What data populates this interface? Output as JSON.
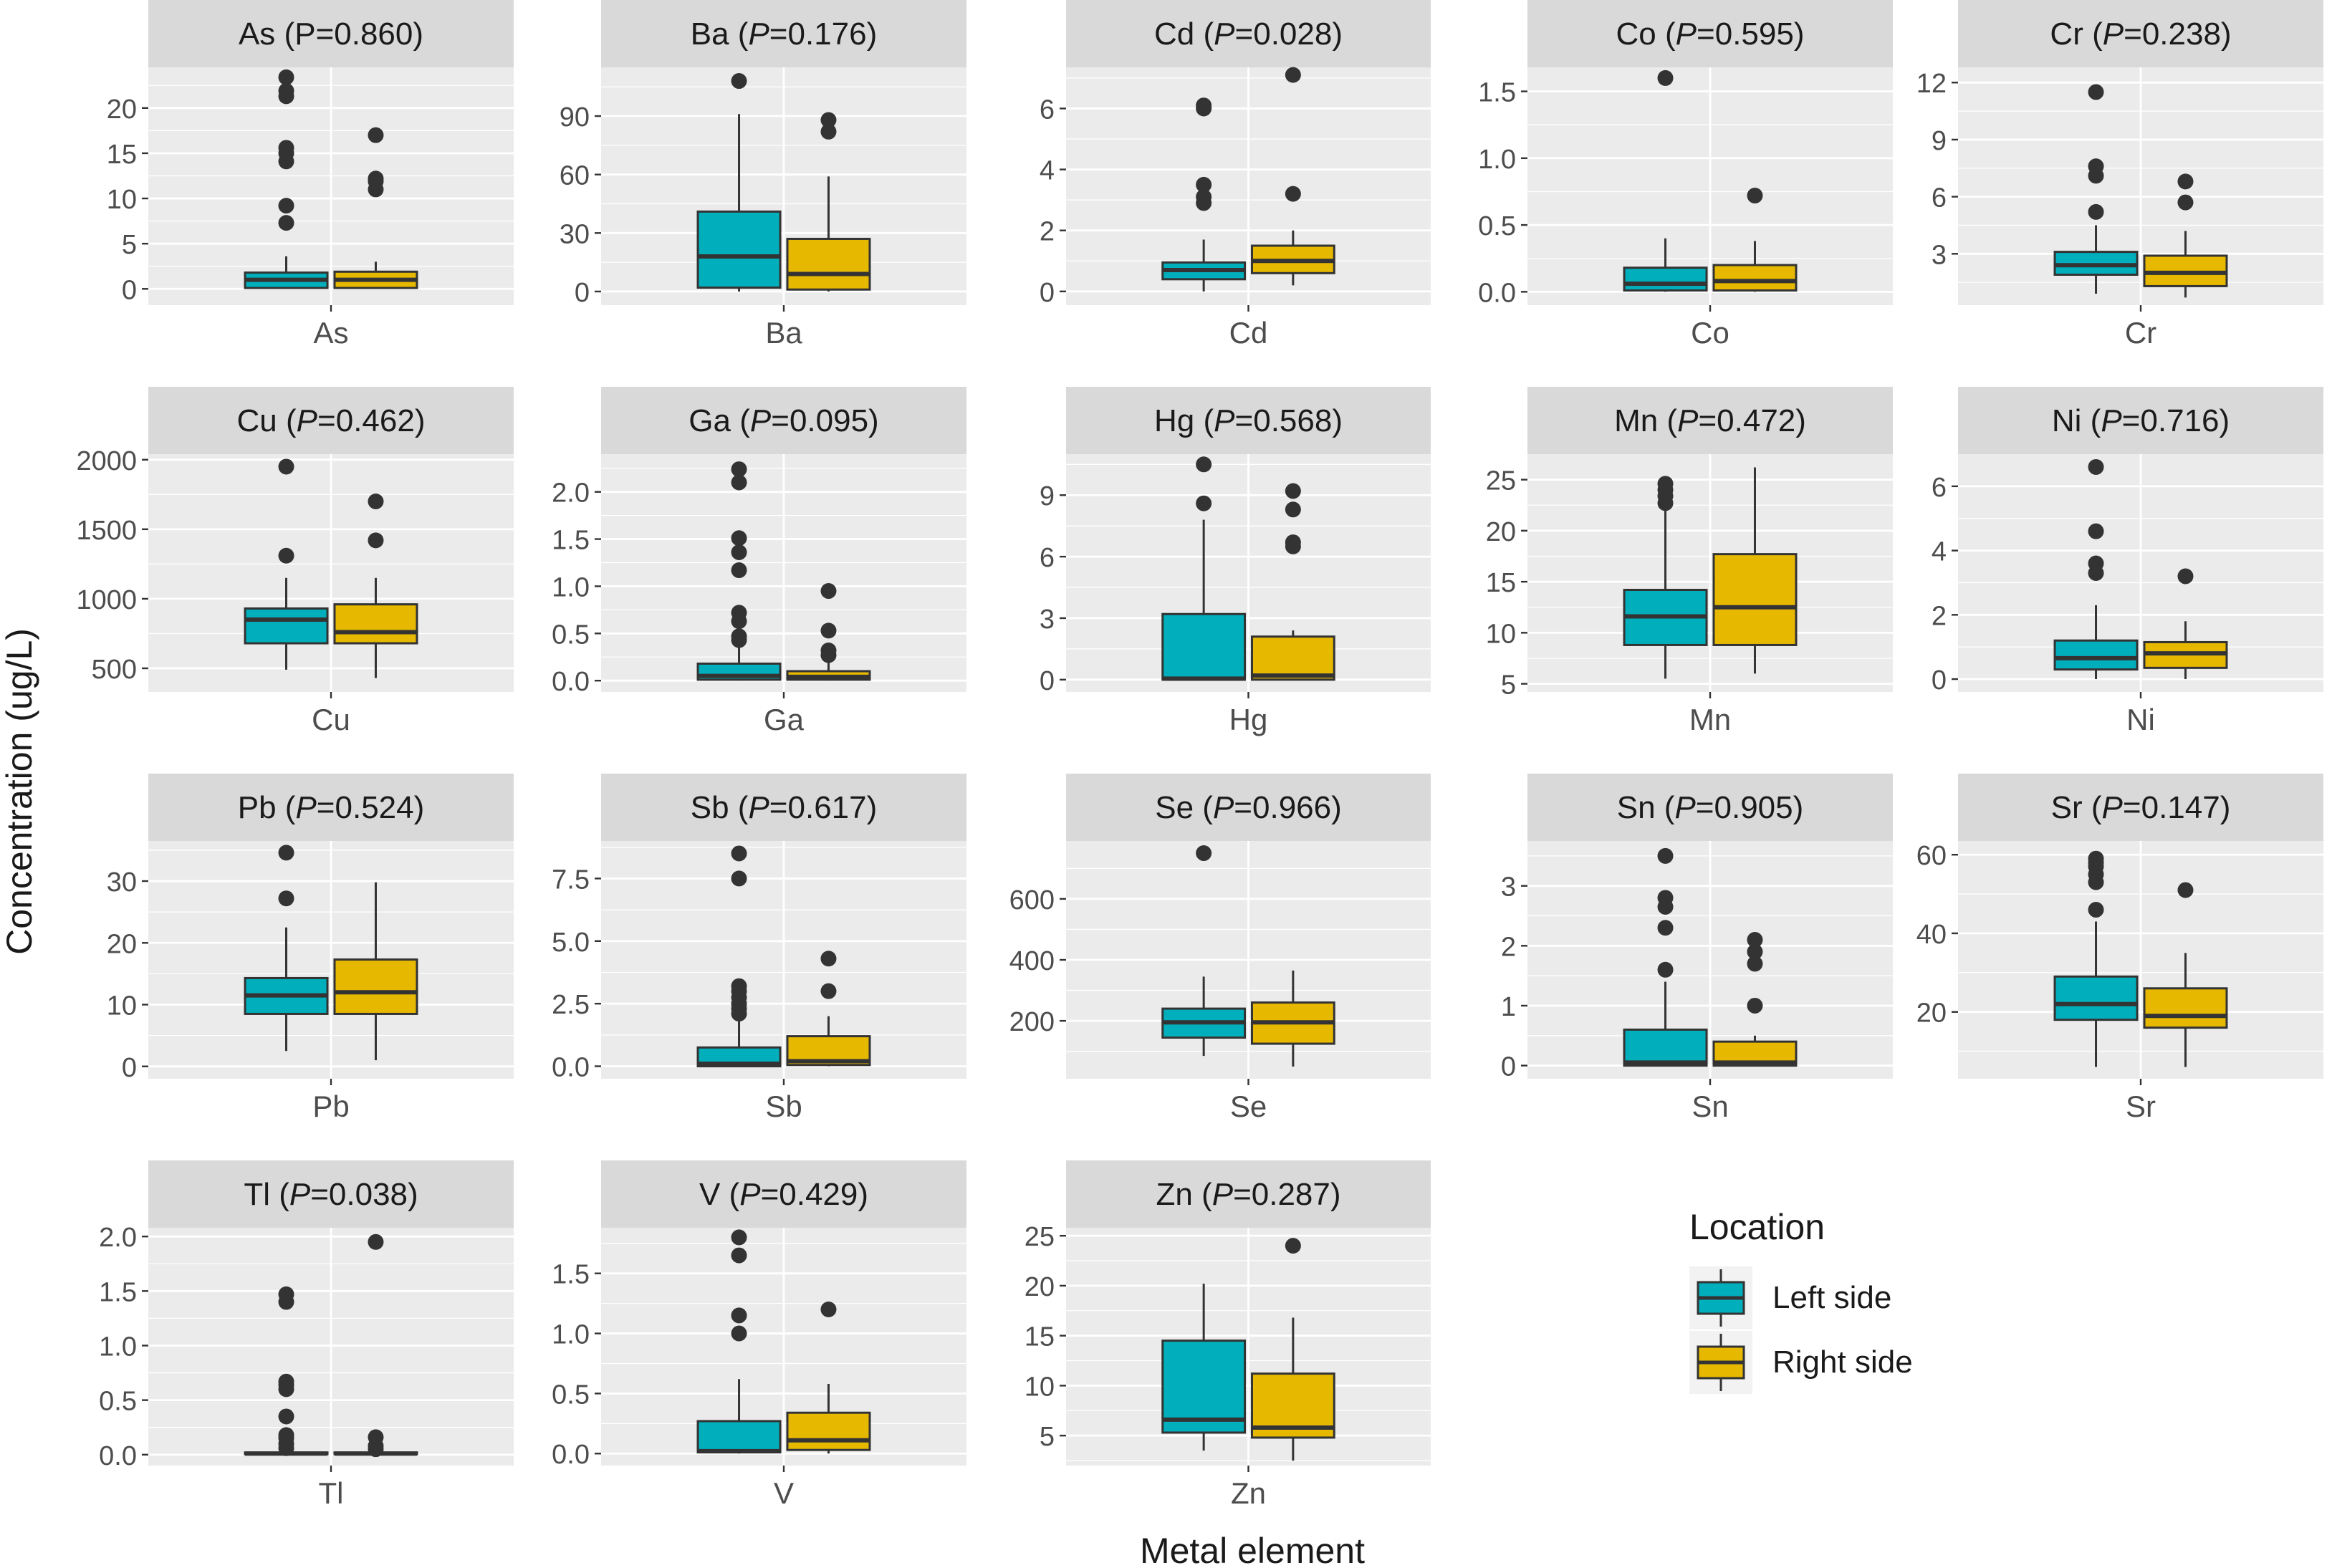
{
  "chart_data": {
    "type": "boxplot",
    "layout": "faceted-grid",
    "xlabel": "Metal element",
    "ylabel": "Concentration (ug/L)",
    "legend": {
      "title": "Location",
      "placement": "right-bottom",
      "entries": [
        {
          "name": "Left side",
          "color": "#00AFBB"
        },
        {
          "name": "Right side",
          "color": "#E7B800"
        }
      ]
    },
    "colors": {
      "panel_bg": "#EBEBEB",
      "strip_bg": "#D9D9D9",
      "grid": "#FFFFFF",
      "text": "#1A1A1A",
      "axis_text": "#4D4D4D",
      "outline": "#333333"
    },
    "facets": [
      {
        "element": "As",
        "p_value": "0.860",
        "p_italic": false,
        "ylim": [
          -1.8,
          24.5
        ],
        "yticks": [
          0,
          5,
          10,
          15,
          20
        ],
        "tick_labels": [
          "0",
          "5",
          "10",
          "15",
          "20"
        ],
        "series": [
          {
            "group": "Left side",
            "q1": 0.1,
            "median": 1.0,
            "q3": 1.8,
            "whisker_low": 0,
            "whisker_high": 3.6,
            "outliers": [
              7.3,
              9.2,
              14.1,
              15.0,
              15.6,
              21.3,
              21.9,
              23.4
            ]
          },
          {
            "group": "Right side",
            "q1": 0.1,
            "median": 1.0,
            "q3": 1.9,
            "whisker_low": 0,
            "whisker_high": 3.0,
            "outliers": [
              11.0,
              11.9,
              12.2,
              17.0
            ]
          }
        ]
      },
      {
        "element": "Ba",
        "p_value": "0.176",
        "p_italic": true,
        "ylim": [
          -7,
          115
        ],
        "yticks": [
          0,
          30,
          60,
          90
        ],
        "tick_labels": [
          "0",
          "30",
          "60",
          "90"
        ],
        "series": [
          {
            "group": "Left side",
            "q1": 2,
            "median": 18,
            "q3": 41,
            "whisker_low": 0,
            "whisker_high": 91,
            "outliers": [
              108
            ]
          },
          {
            "group": "Right side",
            "q1": 1,
            "median": 9,
            "q3": 27,
            "whisker_low": 0,
            "whisker_high": 59,
            "outliers": [
              82,
              88
            ]
          }
        ]
      },
      {
        "element": "Cd",
        "p_value": "0.028",
        "p_italic": true,
        "ylim": [
          -0.45,
          7.35
        ],
        "yticks": [
          0,
          2,
          4,
          6
        ],
        "tick_labels": [
          "0",
          "2",
          "4",
          "6"
        ],
        "series": [
          {
            "group": "Left side",
            "q1": 0.4,
            "median": 0.7,
            "q3": 0.95,
            "whisker_low": 0,
            "whisker_high": 1.7,
            "outliers": [
              2.9,
              3.1,
              3.5,
              6.0,
              6.1
            ]
          },
          {
            "group": "Right side",
            "q1": 0.6,
            "median": 1.0,
            "q3": 1.5,
            "whisker_low": 0.2,
            "whisker_high": 2.0,
            "outliers": [
              3.2,
              7.1
            ]
          }
        ]
      },
      {
        "element": "Co",
        "p_value": "0.595",
        "p_italic": true,
        "ylim": [
          -0.1,
          1.68
        ],
        "yticks": [
          0,
          0.5,
          1.0,
          1.5
        ],
        "tick_labels": [
          "0.0",
          "0.5",
          "1.0",
          "1.5"
        ],
        "series": [
          {
            "group": "Left side",
            "q1": 0.01,
            "median": 0.06,
            "q3": 0.18,
            "whisker_low": 0,
            "whisker_high": 0.4,
            "outliers": [
              1.6
            ]
          },
          {
            "group": "Right side",
            "q1": 0.01,
            "median": 0.08,
            "q3": 0.2,
            "whisker_low": 0,
            "whisker_high": 0.38,
            "outliers": [
              0.72
            ]
          }
        ]
      },
      {
        "element": "Cr",
        "p_value": "0.238",
        "p_italic": true,
        "ylim": [
          0.3,
          12.8
        ],
        "yticks": [
          3,
          6,
          9,
          12
        ],
        "tick_labels": [
          "3",
          "6",
          "9",
          "12"
        ],
        "series": [
          {
            "group": "Left side",
            "q1": 1.9,
            "median": 2.4,
            "q3": 3.1,
            "whisker_low": 0.9,
            "whisker_high": 4.5,
            "outliers": [
              5.2,
              7.1,
              7.6,
              11.5
            ]
          },
          {
            "group": "Right side",
            "q1": 1.3,
            "median": 2.0,
            "q3": 2.9,
            "whisker_low": 0.7,
            "whisker_high": 4.2,
            "outliers": [
              5.7,
              6.8
            ]
          }
        ]
      },
      {
        "element": "Cu",
        "p_value": "0.462",
        "p_italic": true,
        "ylim": [
          330,
          2040
        ],
        "yticks": [
          500,
          1000,
          1500,
          2000
        ],
        "tick_labels": [
          "500",
          "1000",
          "1500",
          "2000"
        ],
        "series": [
          {
            "group": "Left side",
            "q1": 680,
            "median": 850,
            "q3": 930,
            "whisker_low": 490,
            "whisker_high": 1150,
            "outliers": [
              1310,
              1950
            ]
          },
          {
            "group": "Right side",
            "q1": 680,
            "median": 760,
            "q3": 960,
            "whisker_low": 430,
            "whisker_high": 1150,
            "outliers": [
              1420,
              1700
            ]
          }
        ]
      },
      {
        "element": "Ga",
        "p_value": "0.095",
        "p_italic": true,
        "ylim": [
          -0.12,
          2.4
        ],
        "yticks": [
          0,
          0.5,
          1.0,
          1.5,
          2.0
        ],
        "tick_labels": [
          "0.0",
          "0.5",
          "1.0",
          "1.5",
          "2.0"
        ],
        "series": [
          {
            "group": "Left side",
            "q1": 0.01,
            "median": 0.05,
            "q3": 0.18,
            "whisker_low": 0,
            "whisker_high": 0.38,
            "outliers": [
              0.43,
              0.47,
              0.63,
              0.72,
              1.17,
              1.36,
              1.51,
              2.1,
              2.24
            ]
          },
          {
            "group": "Right side",
            "q1": 0.01,
            "median": 0.04,
            "q3": 0.1,
            "whisker_low": 0,
            "whisker_high": 0.2,
            "outliers": [
              0.27,
              0.32,
              0.53,
              0.95
            ]
          }
        ]
      },
      {
        "element": "Hg",
        "p_value": "0.568",
        "p_italic": true,
        "ylim": [
          -0.6,
          11.0
        ],
        "yticks": [
          0,
          3,
          6,
          9
        ],
        "tick_labels": [
          "0",
          "3",
          "6",
          "9"
        ],
        "series": [
          {
            "group": "Left side",
            "q1": 0,
            "median": 0.05,
            "q3": 3.2,
            "whisker_low": 0,
            "whisker_high": 7.8,
            "outliers": [
              8.6,
              10.5
            ]
          },
          {
            "group": "Right side",
            "q1": 0,
            "median": 0.2,
            "q3": 2.1,
            "whisker_low": 0,
            "whisker_high": 2.4,
            "outliers": [
              6.5,
              6.7,
              8.3,
              9.2
            ]
          }
        ]
      },
      {
        "element": "Mn",
        "p_value": "0.472",
        "p_italic": true,
        "ylim": [
          4.2,
          27.5
        ],
        "yticks": [
          5,
          10,
          15,
          20,
          25
        ],
        "tick_labels": [
          "5",
          "10",
          "15",
          "20",
          "25"
        ],
        "series": [
          {
            "group": "Left side",
            "q1": 8.8,
            "median": 11.6,
            "q3": 14.2,
            "whisker_low": 5.5,
            "whisker_high": 22,
            "outliers": [
              22.7,
              23.4,
              24.0,
              24.6
            ]
          },
          {
            "group": "Right side",
            "q1": 8.8,
            "median": 12.5,
            "q3": 17.7,
            "whisker_low": 6.0,
            "whisker_high": 26.2,
            "outliers": []
          }
        ]
      },
      {
        "element": "Ni",
        "p_value": "0.716",
        "p_italic": true,
        "ylim": [
          -0.4,
          7.0
        ],
        "yticks": [
          0,
          2,
          4,
          6
        ],
        "tick_labels": [
          "0",
          "2",
          "4",
          "6"
        ],
        "series": [
          {
            "group": "Left side",
            "q1": 0.3,
            "median": 0.65,
            "q3": 1.2,
            "whisker_low": 0,
            "whisker_high": 2.3,
            "outliers": [
              3.3,
              3.6,
              4.6,
              6.6
            ]
          },
          {
            "group": "Right side",
            "q1": 0.35,
            "median": 0.8,
            "q3": 1.15,
            "whisker_low": 0,
            "whisker_high": 1.8,
            "outliers": [
              3.2
            ]
          }
        ]
      },
      {
        "element": "Pb",
        "p_value": "0.524",
        "p_italic": true,
        "ylim": [
          -2,
          36.5
        ],
        "yticks": [
          0,
          10,
          20,
          30
        ],
        "tick_labels": [
          "0",
          "10",
          "20",
          "30"
        ],
        "series": [
          {
            "group": "Left side",
            "q1": 8.5,
            "median": 11.5,
            "q3": 14.3,
            "whisker_low": 2.5,
            "whisker_high": 22.5,
            "outliers": [
              27.2,
              34.6
            ]
          },
          {
            "group": "Right side",
            "q1": 8.5,
            "median": 12.0,
            "q3": 17.3,
            "whisker_low": 1.0,
            "whisker_high": 29.8,
            "outliers": []
          }
        ]
      },
      {
        "element": "Sb",
        "p_value": "0.617",
        "p_italic": true,
        "ylim": [
          -0.5,
          9.0
        ],
        "yticks": [
          0,
          2.5,
          5.0,
          7.5
        ],
        "tick_labels": [
          "0.0",
          "2.5",
          "5.0",
          "7.5"
        ],
        "series": [
          {
            "group": "Left side",
            "q1": 0,
            "median": 0.1,
            "q3": 0.75,
            "whisker_low": 0,
            "whisker_high": 1.8,
            "outliers": [
              2.1,
              2.3,
              2.5,
              2.75,
              3.0,
              3.2,
              7.5,
              8.5
            ]
          },
          {
            "group": "Right side",
            "q1": 0.05,
            "median": 0.2,
            "q3": 1.2,
            "whisker_low": 0,
            "whisker_high": 2.0,
            "outliers": [
              3.0,
              4.3
            ]
          }
        ]
      },
      {
        "element": "Se",
        "p_value": "0.966",
        "p_italic": true,
        "ylim": [
          10,
          790
        ],
        "yticks": [
          200,
          400,
          600
        ],
        "tick_labels": [
          "200",
          "400",
          "600"
        ],
        "series": [
          {
            "group": "Left side",
            "q1": 145,
            "median": 195,
            "q3": 240,
            "whisker_low": 85,
            "whisker_high": 345,
            "outliers": [
              750
            ]
          },
          {
            "group": "Right side",
            "q1": 125,
            "median": 195,
            "q3": 260,
            "whisker_low": 50,
            "whisker_high": 365,
            "outliers": []
          }
        ]
      },
      {
        "element": "Sn",
        "p_value": "0.905",
        "p_italic": true,
        "ylim": [
          -0.22,
          3.75
        ],
        "yticks": [
          0,
          1,
          2,
          3
        ],
        "tick_labels": [
          "0",
          "1",
          "2",
          "3"
        ],
        "series": [
          {
            "group": "Left side",
            "q1": 0,
            "median": 0.05,
            "q3": 0.6,
            "whisker_low": 0,
            "whisker_high": 1.4,
            "outliers": [
              1.6,
              2.3,
              2.65,
              2.8,
              3.5
            ]
          },
          {
            "group": "Right side",
            "q1": 0,
            "median": 0.05,
            "q3": 0.4,
            "whisker_low": 0,
            "whisker_high": 0.5,
            "outliers": [
              1.0,
              1.7,
              1.9,
              2.1
            ]
          }
        ]
      },
      {
        "element": "Sr",
        "p_value": "0.147",
        "p_italic": true,
        "ylim": [
          3,
          63.5
        ],
        "yticks": [
          20,
          40,
          60
        ],
        "tick_labels": [
          "20",
          "40",
          "60"
        ],
        "series": [
          {
            "group": "Left side",
            "q1": 18,
            "median": 22,
            "q3": 29,
            "whisker_low": 6,
            "whisker_high": 43,
            "outliers": [
              46,
              53,
              55,
              57,
              58,
              59
            ]
          },
          {
            "group": "Right side",
            "q1": 16,
            "median": 19,
            "q3": 26,
            "whisker_low": 6,
            "whisker_high": 35,
            "outliers": [
              51
            ]
          }
        ]
      },
      {
        "element": "Tl",
        "p_value": "0.038",
        "p_italic": true,
        "ylim": [
          -0.1,
          2.08
        ],
        "yticks": [
          0,
          0.5,
          1.0,
          1.5,
          2.0
        ],
        "tick_labels": [
          "0.0",
          "0.5",
          "1.0",
          "1.5",
          "2.0"
        ],
        "series": [
          {
            "group": "Left side",
            "q1": 0.005,
            "median": 0.01,
            "q3": 0.02,
            "whisker_low": 0,
            "whisker_high": 0.03,
            "outliers": [
              0.06,
              0.1,
              0.15,
              0.18,
              0.35,
              0.6,
              0.64,
              0.67,
              1.4,
              1.47
            ]
          },
          {
            "group": "Right side",
            "q1": 0.005,
            "median": 0.01,
            "q3": 0.02,
            "whisker_low": 0,
            "whisker_high": 0.03,
            "outliers": [
              0.05,
              0.08,
              0.16,
              1.95
            ]
          }
        ]
      },
      {
        "element": "V",
        "p_value": "0.429",
        "p_italic": true,
        "ylim": [
          -0.1,
          1.88
        ],
        "yticks": [
          0,
          0.5,
          1.0,
          1.5
        ],
        "tick_labels": [
          "0.0",
          "0.5",
          "1.0",
          "1.5"
        ],
        "series": [
          {
            "group": "Left side",
            "q1": 0.01,
            "median": 0.02,
            "q3": 0.27,
            "whisker_low": 0,
            "whisker_high": 0.62,
            "outliers": [
              1.0,
              1.15,
              1.65,
              1.8
            ]
          },
          {
            "group": "Right side",
            "q1": 0.03,
            "median": 0.11,
            "q3": 0.34,
            "whisker_low": 0,
            "whisker_high": 0.58,
            "outliers": [
              1.2
            ]
          }
        ]
      },
      {
        "element": "Zn",
        "p_value": "0.287",
        "p_italic": true,
        "ylim": [
          2.0,
          25.8
        ],
        "yticks": [
          5,
          10,
          15,
          20,
          25
        ],
        "tick_labels": [
          "5",
          "10",
          "15",
          "20",
          "25"
        ],
        "series": [
          {
            "group": "Left side",
            "q1": 5.3,
            "median": 6.6,
            "q3": 14.5,
            "whisker_low": 3.5,
            "whisker_high": 20.2,
            "outliers": []
          },
          {
            "group": "Right side",
            "q1": 4.8,
            "median": 5.8,
            "q3": 11.2,
            "whisker_low": 2.5,
            "whisker_high": 16.8,
            "outliers": [
              24.0
            ]
          }
        ]
      }
    ]
  }
}
